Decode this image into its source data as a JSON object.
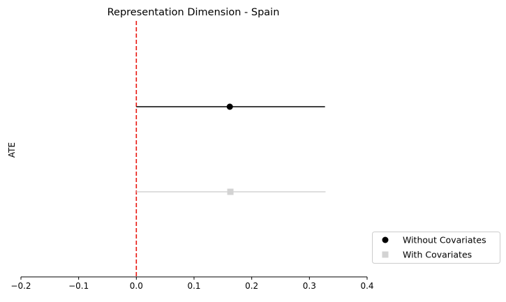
{
  "chart_data": {
    "type": "scatter",
    "title": "Representation Dimension - Spain",
    "xlabel": "",
    "ylabel": "ATE",
    "xlim": [
      -0.2,
      0.4
    ],
    "xticks": [
      -0.2,
      -0.1,
      0.0,
      0.1,
      0.2,
      0.3,
      0.4
    ],
    "xtick_labels": [
      "−0.2",
      "−0.1",
      "0.0",
      "0.1",
      "0.2",
      "0.3",
      "0.4"
    ],
    "grid": false,
    "reference_line": {
      "x": 0.0,
      "color": "#e8130c",
      "style": "dashed"
    },
    "legend_placement": "lower-right-outside",
    "series": [
      {
        "name": "Without Covariates",
        "estimate": 0.162,
        "ci": [
          0.0,
          0.327
        ],
        "marker": "circle",
        "color": "#000000"
      },
      {
        "name": "With Covariates",
        "estimate": 0.163,
        "ci": [
          0.0,
          0.328
        ],
        "marker": "square",
        "color": "#d3d3d3"
      }
    ]
  }
}
